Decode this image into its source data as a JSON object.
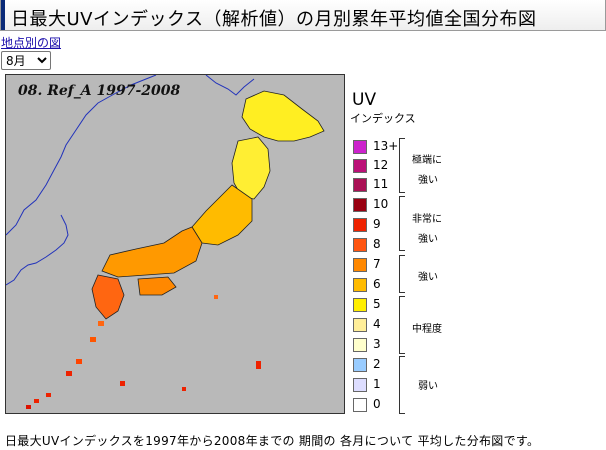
{
  "page": {
    "title": "日最大UVインデックス（解析値）の月別累年平均値全国分布図",
    "back_link": "地点別の図",
    "caption": "日最大UVインデックスを1997年から2008年までの 期間の 各月について 平均した分布図です。"
  },
  "month_select": {
    "value": "8月"
  },
  "map": {
    "label": "08. Ref_A 1997-2008"
  },
  "legend": {
    "title": "UV",
    "subtitle": "インデックス",
    "items": [
      {
        "label": "13+",
        "color": "#cc22cc"
      },
      {
        "label": "12",
        "color": "#bb1177"
      },
      {
        "label": "11",
        "color": "#aa1155"
      },
      {
        "label": "10",
        "color": "#990011"
      },
      {
        "label": "9",
        "color": "#ee2200"
      },
      {
        "label": "8",
        "color": "#ff5511"
      },
      {
        "label": "7",
        "color": "#ff8800"
      },
      {
        "label": "6",
        "color": "#ffbb00"
      },
      {
        "label": "5",
        "color": "#ffee00"
      },
      {
        "label": "4",
        "color": "#ffee99"
      },
      {
        "label": "3",
        "color": "#ffffcc"
      },
      {
        "label": "2",
        "color": "#99ccff"
      },
      {
        "label": "1",
        "color": "#ddddff"
      },
      {
        "label": "0",
        "color": "#ffffff"
      }
    ],
    "categories": [
      {
        "lines": [
          "極端に",
          "強い"
        ]
      },
      {
        "lines": [
          "非常に",
          "強い"
        ]
      },
      {
        "lines": [
          "強い"
        ]
      },
      {
        "lines": [
          "中程度"
        ]
      },
      {
        "lines": [
          "弱い"
        ]
      }
    ]
  }
}
